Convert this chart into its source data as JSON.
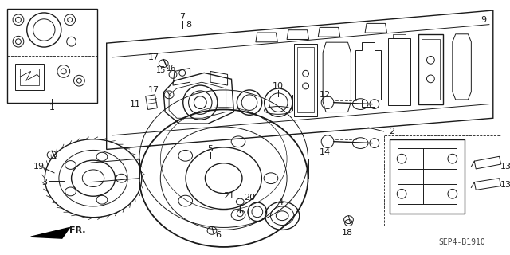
{
  "bg_color": "#ffffff",
  "line_color": "#1a1a1a",
  "diagram_id": "SEP4-B1910",
  "fig_width": 6.4,
  "fig_height": 3.2,
  "dpi": 100
}
